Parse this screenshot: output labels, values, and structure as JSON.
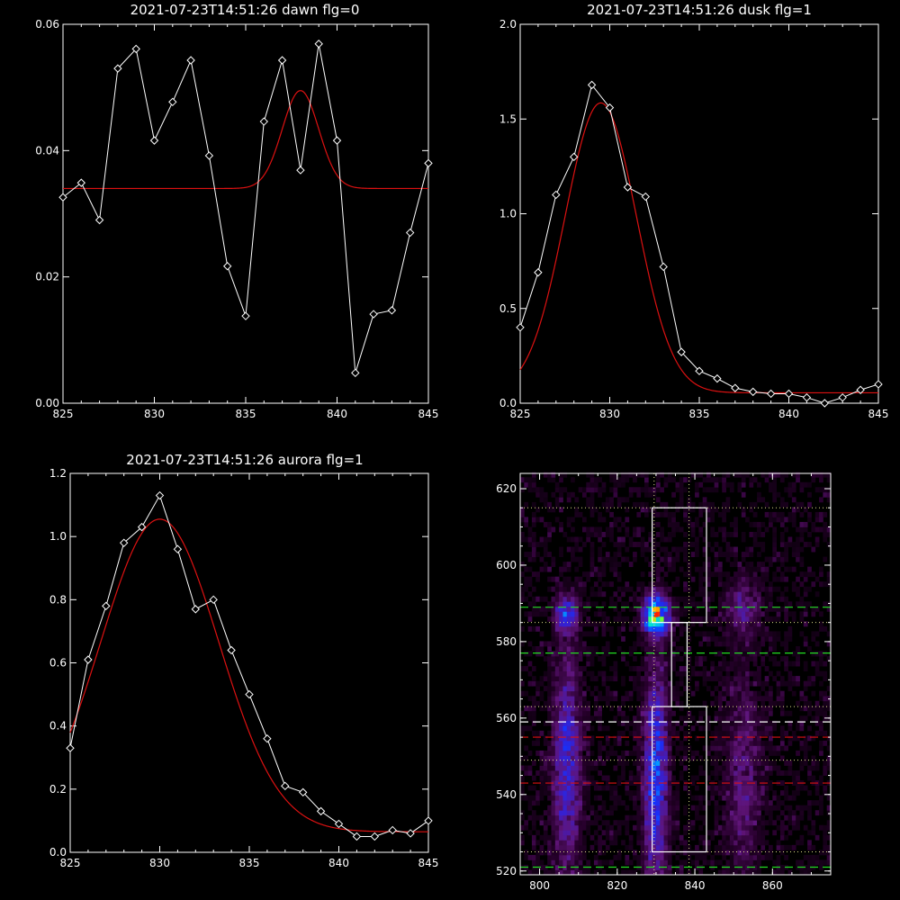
{
  "colors": {
    "background": "#000000",
    "axes": "#ffffff",
    "data": "#ffffff",
    "fit": "#dd1111",
    "dash_green": "#22dd22",
    "dash_white": "#ffffff",
    "dash_red": "#dd1111",
    "dot_line": "#dddd88"
  },
  "chart_data": [
    {
      "type": "line",
      "title": "2021-07-23T14:51:26 dawn flg=0",
      "xlim": [
        825,
        845
      ],
      "ylim": [
        0,
        0.06
      ],
      "xticks": [
        "825",
        "830",
        "835",
        "840",
        "845"
      ],
      "yticks": [
        "0.00",
        "0.02",
        "0.04",
        "0.06"
      ],
      "series": [
        {
          "role": "data",
          "marker": "diamond",
          "x": [
            825,
            826,
            827,
            828,
            829,
            830,
            831,
            832,
            833,
            834,
            835,
            836,
            837,
            838,
            839,
            840,
            841,
            842,
            843,
            844,
            845
          ],
          "y": [
            0.0326,
            0.0349,
            0.029,
            0.053,
            0.0561,
            0.0416,
            0.0477,
            0.0543,
            0.0392,
            0.0217,
            0.0138,
            0.0446,
            0.0543,
            0.0369,
            0.0569,
            0.0416,
            0.0048,
            0.0141,
            0.0147,
            0.027,
            0.038
          ]
        },
        {
          "role": "fit",
          "model": "gaussian",
          "center": 838,
          "sigma": 1.0,
          "amplitude": 0.0155,
          "baseline": 0.034
        }
      ]
    },
    {
      "type": "line",
      "title": "2021-07-23T14:51:26 dusk flg=1",
      "xlim": [
        825,
        845
      ],
      "ylim": [
        0,
        2.0
      ],
      "xticks": [
        "825",
        "830",
        "835",
        "840",
        "845"
      ],
      "yticks": [
        "0.0",
        "0.5",
        "1.0",
        "1.5",
        "2.0"
      ],
      "series": [
        {
          "role": "data",
          "marker": "diamond",
          "x": [
            825,
            826,
            827,
            828,
            829,
            830,
            831,
            832,
            833,
            834,
            835,
            836,
            837,
            838,
            839,
            840,
            841,
            842,
            843,
            844,
            845
          ],
          "y": [
            0.4,
            0.69,
            1.1,
            1.3,
            1.68,
            1.56,
            1.14,
            1.09,
            0.72,
            0.27,
            0.17,
            0.13,
            0.08,
            0.06,
            0.05,
            0.05,
            0.03,
            0.0,
            0.03,
            0.07,
            0.1
          ]
        },
        {
          "role": "fit",
          "model": "gaussian",
          "center": 829.5,
          "sigma": 2.0,
          "amplitude": 1.53,
          "baseline": 0.055
        }
      ]
    },
    {
      "type": "line",
      "title": "2021-07-23T14:51:26 aurora flg=1",
      "xlim": [
        825,
        845
      ],
      "ylim": [
        0,
        1.2
      ],
      "xticks": [
        "825",
        "830",
        "835",
        "840",
        "845"
      ],
      "yticks": [
        "0.0",
        "0.2",
        "0.4",
        "0.6",
        "0.8",
        "1.0",
        "1.2"
      ],
      "series": [
        {
          "role": "data",
          "marker": "diamond",
          "x": [
            825,
            826,
            827,
            828,
            829,
            830,
            831,
            832,
            833,
            834,
            835,
            836,
            837,
            838,
            839,
            840,
            841,
            842,
            843,
            844,
            845
          ],
          "y": [
            0.33,
            0.61,
            0.78,
            0.98,
            1.03,
            1.13,
            0.96,
            0.77,
            0.8,
            0.64,
            0.5,
            0.36,
            0.21,
            0.19,
            0.13,
            0.09,
            0.05,
            0.05,
            0.07,
            0.06,
            0.1
          ]
        },
        {
          "role": "fit",
          "model": "gaussian",
          "center": 830,
          "sigma": 3.3,
          "amplitude": 0.99,
          "baseline": 0.065
        }
      ]
    },
    {
      "type": "heatmap",
      "title": "",
      "xlim": [
        795,
        875
      ],
      "ylim": [
        519,
        624
      ],
      "xticks": [
        "800",
        "820",
        "840",
        "860"
      ],
      "yticks": [
        "520",
        "540",
        "560",
        "580",
        "600",
        "620"
      ],
      "blobs": [
        {
          "x": 807.0,
          "y": 587,
          "sx": 1.8,
          "sy": 3.0,
          "amp": 0.36
        },
        {
          "x": 830.0,
          "y": 587,
          "sx": 2.2,
          "sy": 3.2,
          "amp": 0.7
        },
        {
          "x": 852.5,
          "y": 589,
          "sx": 2.8,
          "sy": 4.5,
          "amp": 0.16
        },
        {
          "x": 807.0,
          "y": 548,
          "sx": 2.3,
          "sy": 18.0,
          "amp": 0.27
        },
        {
          "x": 830.0,
          "y": 545,
          "sx": 2.0,
          "sy": 18.0,
          "amp": 0.36
        },
        {
          "x": 852.5,
          "y": 545,
          "sx": 3.0,
          "sy": 18.0,
          "amp": 0.13
        }
      ],
      "peak": {
        "x": 830,
        "y": 587
      },
      "boxes": [
        {
          "x0": 829,
          "x1": 843,
          "y0": 585,
          "y1": 615
        },
        {
          "x0": 834,
          "x1": 838,
          "y0": 563,
          "y1": 585
        },
        {
          "x0": 829,
          "x1": 843,
          "y0": 525,
          "y1": 563
        }
      ],
      "vlines_dotted": [
        829.5,
        838.5
      ],
      "hlines_dotted": [
        615,
        585,
        563,
        549,
        525
      ],
      "hlines_dashed": [
        {
          "y": 589,
          "color": "dash_green"
        },
        {
          "y": 577,
          "color": "dash_green"
        },
        {
          "y": 521,
          "color": "dash_green"
        },
        {
          "y": 559,
          "color": "dash_white"
        },
        {
          "y": 555,
          "color": "dash_red"
        },
        {
          "y": 543,
          "color": "dash_red"
        }
      ]
    }
  ]
}
